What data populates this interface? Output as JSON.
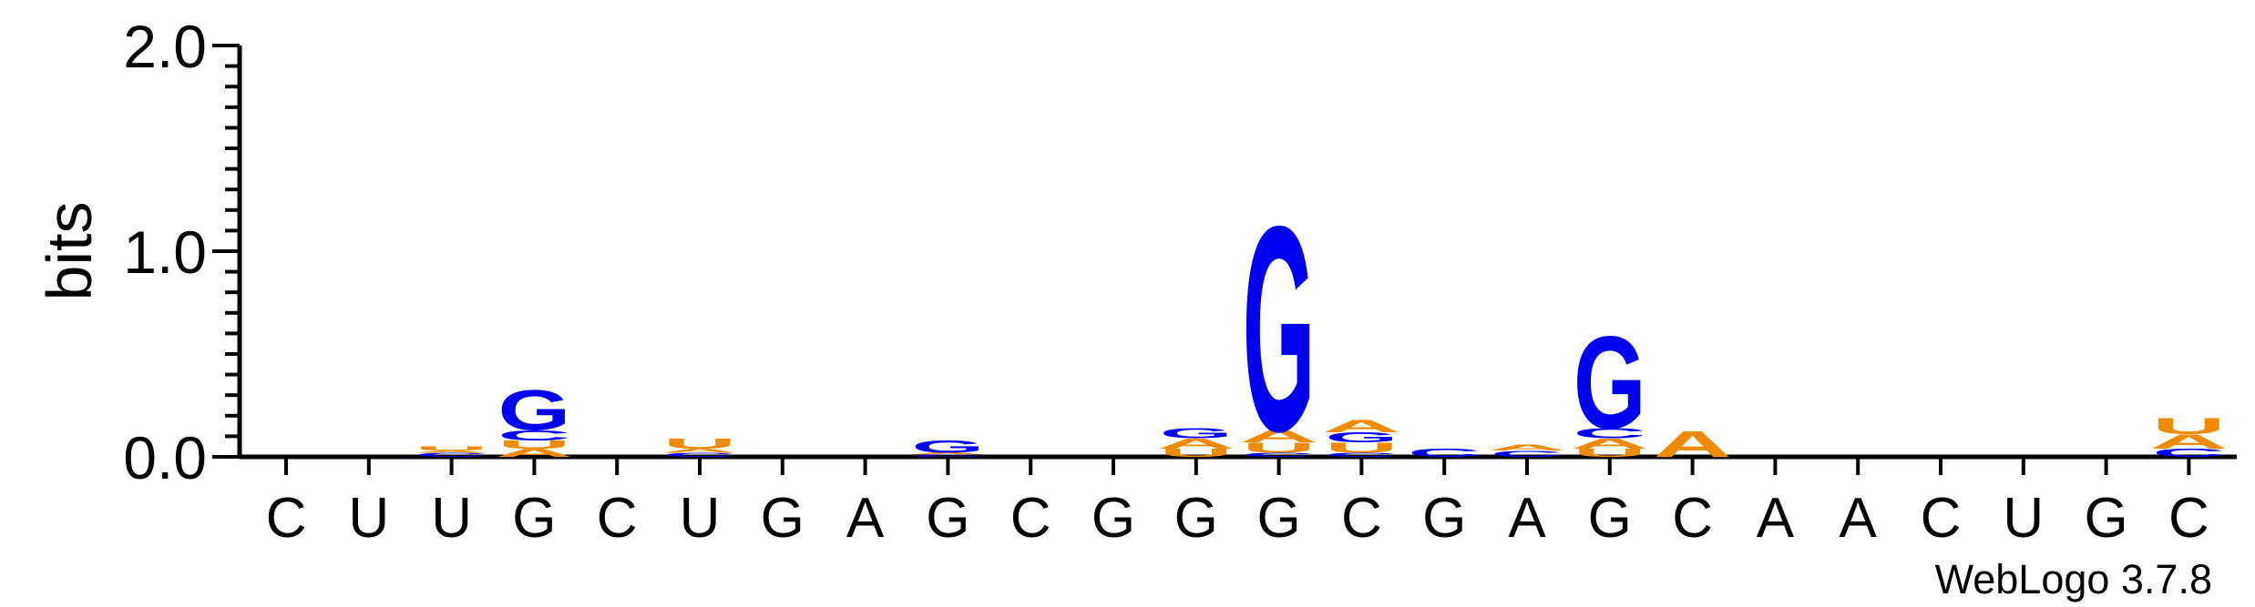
{
  "chart_data": {
    "type": "sequence-logo",
    "ylabel": "bits",
    "ylim": [
      0,
      2.0
    ],
    "yticks": [
      "0.0",
      "1.0",
      "2.0"
    ],
    "footer": "WebLogo 3.7.8",
    "colors": {
      "G": "#0000ee",
      "C": "#0000ee",
      "U": "#f08a00",
      "A": "#f08a00"
    },
    "positions": [
      {
        "label": "C",
        "stack": []
      },
      {
        "label": "U",
        "stack": []
      },
      {
        "label": "U",
        "stack": [
          {
            "letter": "C",
            "bits": 0.02
          },
          {
            "letter": "A",
            "bits": 0.01
          },
          {
            "letter": "U",
            "bits": 0.02
          }
        ]
      },
      {
        "label": "G",
        "stack": [
          {
            "letter": "A",
            "bits": 0.04
          },
          {
            "letter": "U",
            "bits": 0.04
          },
          {
            "letter": "C",
            "bits": 0.05
          },
          {
            "letter": "G",
            "bits": 0.2
          }
        ]
      },
      {
        "label": "C",
        "stack": []
      },
      {
        "label": "U",
        "stack": [
          {
            "letter": "C",
            "bits": 0.02
          },
          {
            "letter": "A",
            "bits": 0.02
          },
          {
            "letter": "U",
            "bits": 0.05
          }
        ]
      },
      {
        "label": "G",
        "stack": []
      },
      {
        "label": "A",
        "stack": []
      },
      {
        "label": "G",
        "stack": [
          {
            "letter": "C",
            "bits": 0.01
          },
          {
            "letter": "A",
            "bits": 0.01
          },
          {
            "letter": "G",
            "bits": 0.06
          }
        ]
      },
      {
        "label": "C",
        "stack": []
      },
      {
        "label": "G",
        "stack": []
      },
      {
        "label": "G",
        "stack": [
          {
            "letter": "U",
            "bits": 0.04
          },
          {
            "letter": "A",
            "bits": 0.05
          },
          {
            "letter": "G",
            "bits": 0.05
          }
        ]
      },
      {
        "label": "G",
        "stack": [
          {
            "letter": "C",
            "bits": 0.02
          },
          {
            "letter": "U",
            "bits": 0.05
          },
          {
            "letter": "A",
            "bits": 0.06
          },
          {
            "letter": "G",
            "bits": 1.02
          }
        ]
      },
      {
        "label": "C",
        "stack": [
          {
            "letter": "C",
            "bits": 0.02
          },
          {
            "letter": "U",
            "bits": 0.05
          },
          {
            "letter": "G",
            "bits": 0.05
          },
          {
            "letter": "A",
            "bits": 0.06
          }
        ]
      },
      {
        "label": "G",
        "stack": [
          {
            "letter": "C",
            "bits": 0.04
          }
        ]
      },
      {
        "label": "A",
        "stack": [
          {
            "letter": "C",
            "bits": 0.03
          },
          {
            "letter": "A",
            "bits": 0.03
          }
        ]
      },
      {
        "label": "G",
        "stack": [
          {
            "letter": "U",
            "bits": 0.04
          },
          {
            "letter": "A",
            "bits": 0.05
          },
          {
            "letter": "C",
            "bits": 0.05
          },
          {
            "letter": "G",
            "bits": 0.46
          }
        ]
      },
      {
        "label": "C",
        "stack": [
          {
            "letter": "A",
            "bits": 0.13
          }
        ]
      },
      {
        "label": "A",
        "stack": []
      },
      {
        "label": "A",
        "stack": []
      },
      {
        "label": "C",
        "stack": []
      },
      {
        "label": "U",
        "stack": []
      },
      {
        "label": "G",
        "stack": []
      },
      {
        "label": "C",
        "stack": [
          {
            "letter": "C",
            "bits": 0.04
          },
          {
            "letter": "A",
            "bits": 0.07
          },
          {
            "letter": "U",
            "bits": 0.08
          }
        ]
      }
    ]
  }
}
